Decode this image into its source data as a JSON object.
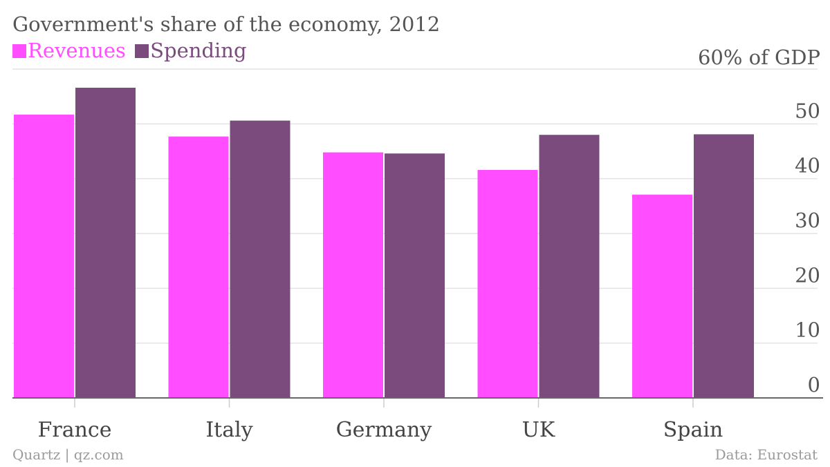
{
  "chart_data": {
    "type": "bar",
    "title": "Government's share of the economy, 2012",
    "categories": [
      "France",
      "Italy",
      "Germany",
      "UK",
      "Spain"
    ],
    "series": [
      {
        "name": "Revenues",
        "color": "#ff4dff",
        "values": [
          51.7,
          47.7,
          44.8,
          41.6,
          37.1
        ]
      },
      {
        "name": "Spending",
        "color": "#7b4b7d",
        "values": [
          56.6,
          50.6,
          44.6,
          48.0,
          48.1
        ]
      }
    ],
    "y_ticks": [
      0,
      10,
      20,
      30,
      40,
      50
    ],
    "y_top_label": "60% of GDP",
    "ylim": [
      0,
      60
    ],
    "grid": true
  },
  "footer": {
    "source_left": "Quartz | qz.com",
    "source_right": "Data: Eurostat"
  }
}
